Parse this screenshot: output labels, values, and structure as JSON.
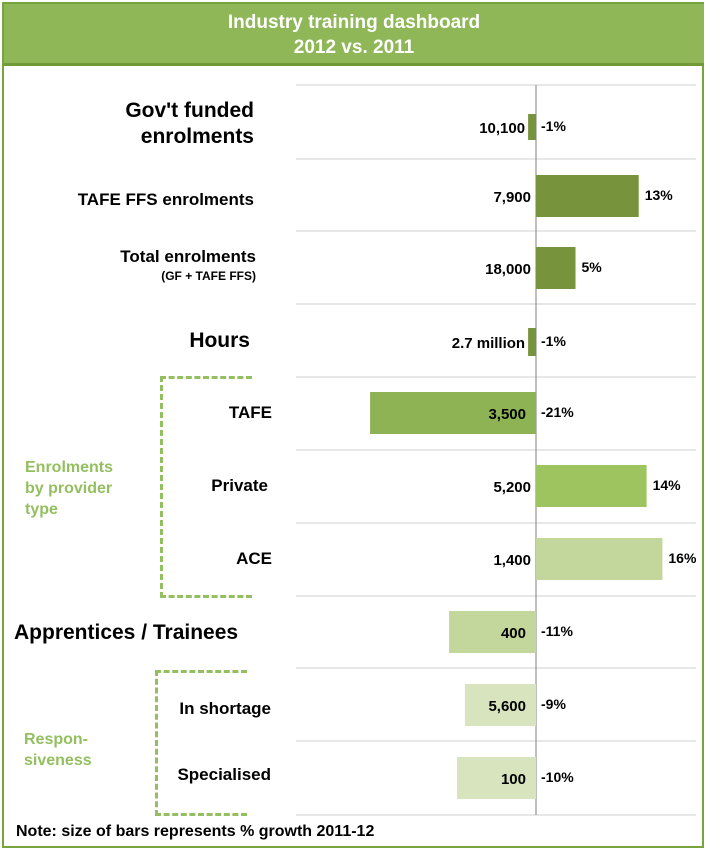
{
  "title_line1": "Industry training dashboard",
  "title_line2": "2012 vs. 2011",
  "note": "Note: size of bars represents % growth 2011-12",
  "group_labels": {
    "provider": [
      "Enrolments",
      "by provider",
      "type"
    ],
    "responsiveness": [
      "Respon-",
      "siveness"
    ]
  },
  "row_labels": [
    {
      "main": "Gov't funded",
      "main2": "enrolments"
    },
    {
      "main": "TAFE FFS enrolments"
    },
    {
      "main": "Total enrolments",
      "sub": "(GF + TAFE FFS)"
    },
    {
      "main": "Hours"
    },
    {
      "main": "TAFE"
    },
    {
      "main": "Private"
    },
    {
      "main": "ACE"
    },
    {
      "main": "Apprentices / Trainees"
    },
    {
      "main": "In shortage"
    },
    {
      "main": "Specialised"
    }
  ],
  "chart_data": {
    "type": "bar",
    "orientation": "horizontal",
    "categories": [
      "Gov't funded enrolments",
      "TAFE FFS enrolments",
      "Total enrolments (GF + TAFE FFS)",
      "Hours",
      "TAFE",
      "Private",
      "ACE",
      "Apprentices / Trainees",
      "In shortage",
      "Specialised"
    ],
    "value_labels": [
      "10,100",
      "7,900",
      "18,000",
      "2.7 million",
      "3,500",
      "5,200",
      "1,400",
      "400",
      "5,600",
      "100"
    ],
    "growth_labels": [
      "-1%",
      "13%",
      "5%",
      "-1%",
      "-21%",
      "14%",
      "16%",
      "-11%",
      "-9%",
      "-10%"
    ],
    "growth_pct": [
      -1,
      13,
      5,
      -1,
      -21,
      14,
      16,
      -11,
      -9,
      -10
    ],
    "colors": [
      "#77933c",
      "#77933c",
      "#77933c",
      "#77933c",
      "#8db355",
      "#9dc45f",
      "#c3d69b",
      "#c3d69b",
      "#d7e4bd",
      "#d7e4bd"
    ]
  }
}
